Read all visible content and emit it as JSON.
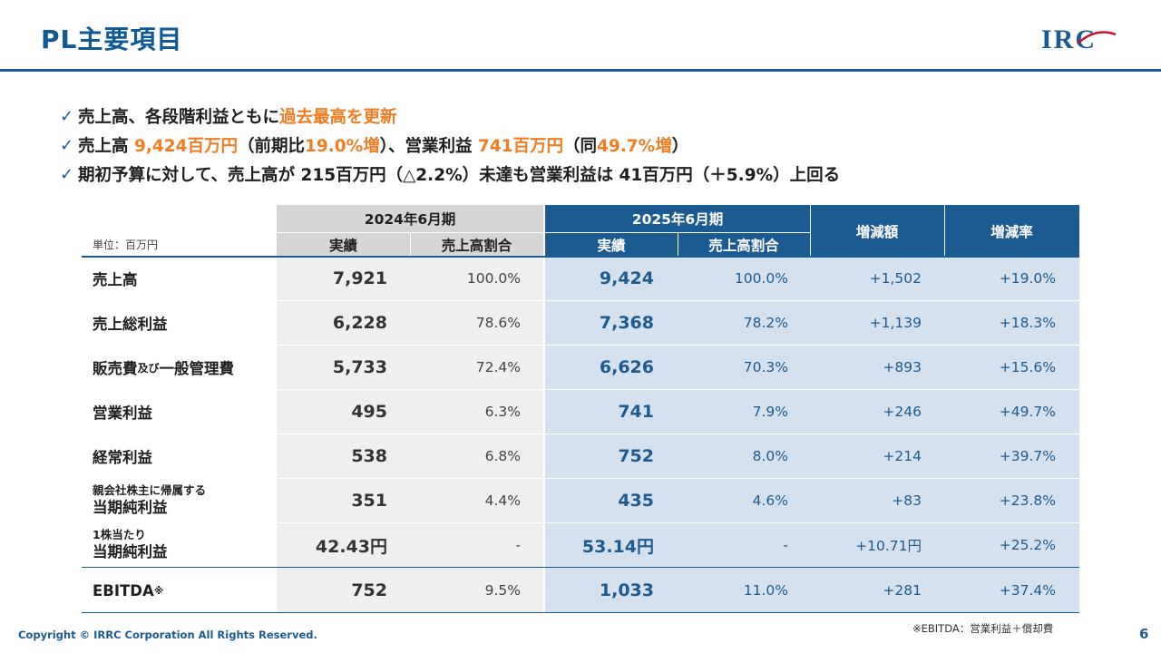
{
  "page": {
    "title": "PL主要項目",
    "logo_text": "IRC",
    "footnote": "※EBITDA：営業利益＋償却費",
    "copyright": "Copyright © IRRC Corporation All Rights Reserved.",
    "page_number": "6"
  },
  "colors": {
    "brand": "#1c5b92",
    "highlight": "#ef7d22",
    "logo_red": "#c8102e"
  },
  "bullets": {
    "check_icon": "checkmark-icon",
    "line1": {
      "text1": "売上高、各段階利益ともに",
      "hl1": "過去最高を更新"
    },
    "line2": {
      "text1": "売上高 ",
      "hl1": "9,424百万円",
      "text2": "（前期比",
      "hl2": "19.0%増",
      "text3": "）、営業利益 ",
      "hl3": "741百万円",
      "text4": "（同",
      "hl4": "49.7%増",
      "text5": "）"
    },
    "line3": {
      "text1": "期初予算に対して、売上高が 215百万円（△2.2%）未達も営業利益は 41百万円（＋5.9%）上回る"
    }
  },
  "table": {
    "unit": "単位：百万円",
    "period_prev": "2024年6月期",
    "period_curr": "2025年6月期",
    "col_actual_prev": "実績",
    "col_ratio_prev": "売上高割合",
    "col_actual_curr": "実績",
    "col_ratio_curr": "売上高割合",
    "col_change": "増減額",
    "col_change_rate": "増減率",
    "rows": [
      {
        "label": "売上高",
        "prev": "7,921",
        "prev_ratio": "100.0%",
        "curr": "9,424",
        "curr_ratio": "100.0%",
        "change": "+1,502",
        "rate": "+19.0%"
      },
      {
        "label": "売上総利益",
        "prev": "6,228",
        "prev_ratio": "78.6%",
        "curr": "7,368",
        "curr_ratio": "78.2%",
        "change": "+1,139",
        "rate": "+18.3%"
      },
      {
        "label_main1": "販売費",
        "label_small": "及び",
        "label_main2": "一般管理費",
        "prev": "5,733",
        "prev_ratio": "72.4%",
        "curr": "6,626",
        "curr_ratio": "70.3%",
        "change": "+893",
        "rate": "+15.6%"
      },
      {
        "label": "営業利益",
        "prev": "495",
        "prev_ratio": "6.3%",
        "curr": "741",
        "curr_ratio": "7.9%",
        "change": "+246",
        "rate": "+49.7%"
      },
      {
        "label": "経常利益",
        "prev": "538",
        "prev_ratio": "6.8%",
        "curr": "752",
        "curr_ratio": "8.0%",
        "change": "+214",
        "rate": "+39.7%"
      },
      {
        "label_line1": "親会社株主に帰属する",
        "label_line2": "当期純利益",
        "prev": "351",
        "prev_ratio": "4.4%",
        "curr": "435",
        "curr_ratio": "4.6%",
        "change": "+83",
        "rate": "+23.8%"
      },
      {
        "label_line1": "1株当たり",
        "label_line2": "当期純利益",
        "prev": "42.43円",
        "prev_ratio": "-",
        "curr": "53.14円",
        "curr_ratio": "-",
        "change": "+10.71円",
        "rate": "+25.2%"
      },
      {
        "label": "EBITDA",
        "label_mark": "※",
        "prev": "752",
        "prev_ratio": "9.5%",
        "curr": "1,033",
        "curr_ratio": "11.0%",
        "change": "+281",
        "rate": "+37.4%"
      }
    ]
  }
}
